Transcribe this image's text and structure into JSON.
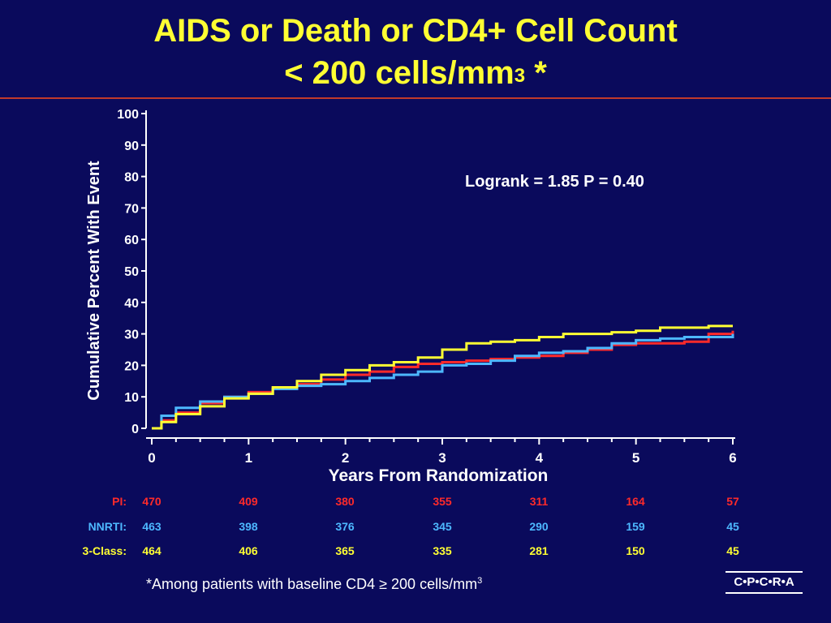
{
  "title": {
    "line1": "AIDS or Death or CD4+ Cell Count",
    "line2": "< 200 cells/mm",
    "line2_sup": "3",
    "line2_suffix": " *"
  },
  "chart_data": {
    "type": "line",
    "step": true,
    "ylabel": "Cumulative Percent With Event",
    "xlabel": "Years From Randomization",
    "xlim": [
      0,
      6
    ],
    "ylim": [
      0,
      100
    ],
    "x_ticks": [
      "0",
      "1",
      "2",
      "3",
      "4",
      "5",
      "6"
    ],
    "y_ticks": [
      "0",
      "10",
      "20",
      "30",
      "40",
      "50",
      "60",
      "70",
      "80",
      "90",
      "100"
    ],
    "annotation": "Logrank = 1.85  P = 0.40",
    "series": [
      {
        "color": "#ff2a2a",
        "x": [
          0,
          0.1,
          0.25,
          0.5,
          0.75,
          1.0,
          1.25,
          1.5,
          1.75,
          2.0,
          2.25,
          2.5,
          2.75,
          3.0,
          3.25,
          3.5,
          3.75,
          4.0,
          4.25,
          4.5,
          4.75,
          5.0,
          5.25,
          5.5,
          5.75,
          6.0
        ],
        "values": [
          0,
          2.5,
          5,
          8,
          10,
          11.5,
          12.5,
          14,
          15.5,
          17,
          18,
          19.5,
          20.5,
          21,
          21.5,
          22,
          22.5,
          23,
          24,
          25,
          26.5,
          27,
          27,
          27.5,
          30,
          31
        ]
      },
      {
        "color": "#4db8ff",
        "x": [
          0,
          0.1,
          0.25,
          0.5,
          0.75,
          1.0,
          1.25,
          1.5,
          1.75,
          2.0,
          2.25,
          2.5,
          2.75,
          3.0,
          3.25,
          3.5,
          3.75,
          4.0,
          4.25,
          4.5,
          4.75,
          5.0,
          5.25,
          5.5,
          5.75,
          6.0
        ],
        "values": [
          0,
          4,
          6.5,
          8.5,
          10,
          11,
          12.5,
          13.5,
          14,
          15,
          16,
          17,
          18,
          20,
          20.5,
          21.5,
          23,
          24,
          24.5,
          25.5,
          27,
          28,
          28.5,
          29,
          29,
          30
        ]
      },
      {
        "color": "#ffff33",
        "x": [
          0,
          0.1,
          0.25,
          0.5,
          0.75,
          1.0,
          1.25,
          1.5,
          1.75,
          2.0,
          2.25,
          2.5,
          2.75,
          3.0,
          3.25,
          3.5,
          3.75,
          4.0,
          4.25,
          4.5,
          4.75,
          5.0,
          5.25,
          5.5,
          5.75,
          6.0
        ],
        "values": [
          0,
          2,
          4.5,
          7,
          9.5,
          11,
          13,
          15,
          17,
          18.5,
          20,
          21,
          22.5,
          25,
          27,
          27.5,
          28,
          29,
          30,
          30,
          30.5,
          31,
          32,
          32,
          32.5,
          32.5
        ]
      }
    ]
  },
  "risk_table": {
    "rows": [
      {
        "label": "PI:",
        "color": "#ff2a2a",
        "values": [
          "470",
          "409",
          "380",
          "355",
          "311",
          "164",
          "57"
        ]
      },
      {
        "label": "NNRTI:",
        "color": "#4db8ff",
        "values": [
          "463",
          "398",
          "376",
          "345",
          "290",
          "159",
          "45"
        ]
      },
      {
        "label": "3-Class:",
        "color": "#ffff33",
        "values": [
          "464",
          "406",
          "365",
          "335",
          "281",
          "150",
          "45"
        ]
      }
    ]
  },
  "footnote": {
    "text": "*Among patients with baseline CD4 ≥ 200 cells/mm",
    "sup": "3"
  },
  "logo": "C•P•C•R•A"
}
